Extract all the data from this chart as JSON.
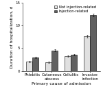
{
  "categories": [
    "Phlebitis",
    "Cutaneous\nabscess",
    "Cellulitis",
    "Invasive\ninfection"
  ],
  "non_injection_values": [
    2.0,
    1.9,
    3.3,
    7.7
  ],
  "injection_values": [
    2.9,
    4.5,
    3.5,
    12.3
  ],
  "non_injection_errors": [
    0.15,
    0.15,
    0.15,
    0.3
  ],
  "injection_errors": [
    0.15,
    0.2,
    0.15,
    0.25
  ],
  "non_injection_color": "#e0e0e0",
  "injection_color": "#606060",
  "ylabel": "Duration of hospitalization, d",
  "xlabel": "Primary cause of admission",
  "ylim": [
    0,
    15
  ],
  "yticks": [
    0,
    5,
    10,
    15
  ],
  "legend_labels": [
    "Not injection-related",
    "Injection-related"
  ],
  "bar_width": 0.32,
  "axis_fontsize": 4.5,
  "tick_fontsize": 4.0,
  "legend_fontsize": 3.8
}
